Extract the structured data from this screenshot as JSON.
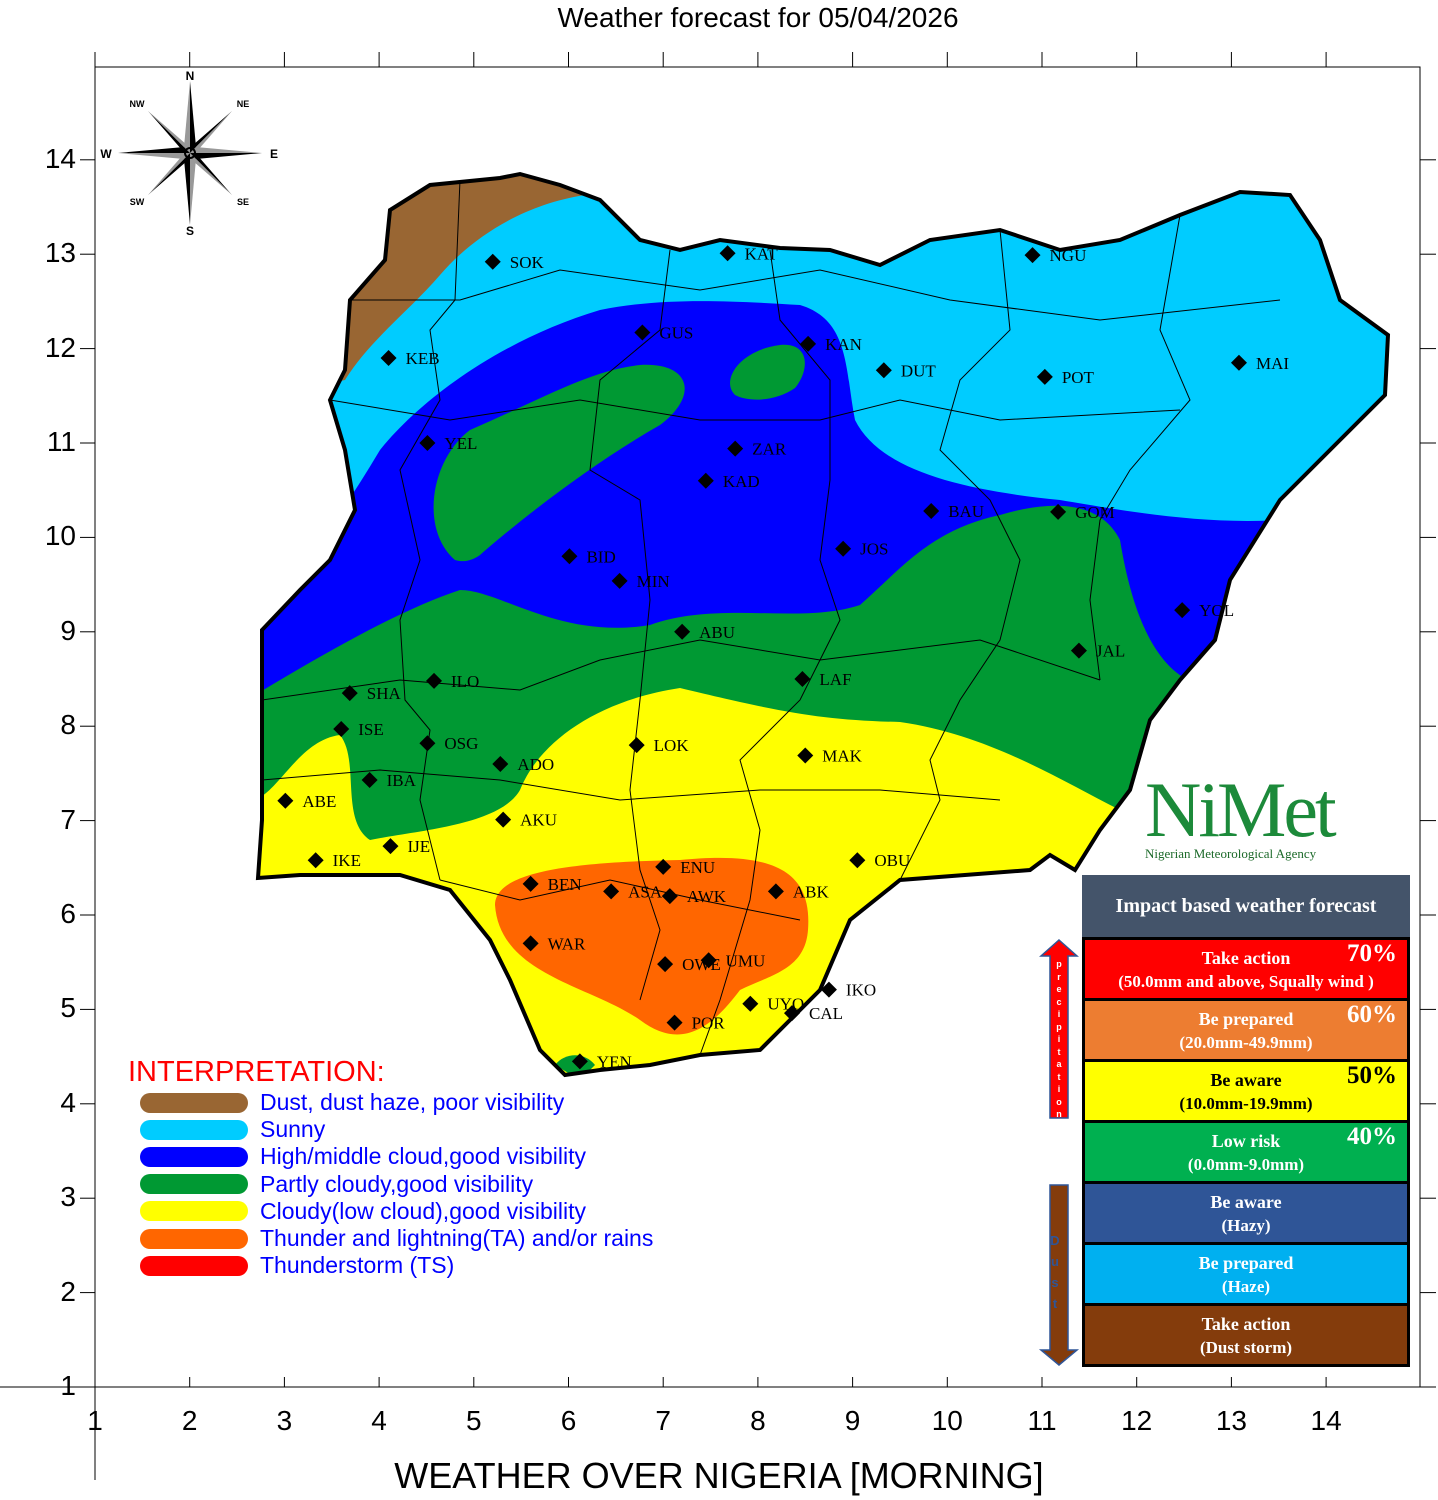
{
  "title": "Weather forecast for 05/04/2026",
  "x_axis_title": "WEATHER OVER NIGERIA [MORNING]",
  "axes": {
    "x_ticks": [
      1,
      2,
      3,
      4,
      5,
      6,
      7,
      8,
      9,
      10,
      11,
      12,
      13,
      14
    ],
    "y_ticks": [
      1,
      2,
      3,
      4,
      5,
      6,
      7,
      8,
      9,
      10,
      11,
      12,
      13,
      14
    ],
    "xlim": [
      1,
      15
    ],
    "ylim": [
      1,
      15
    ]
  },
  "compass": {
    "n": "N",
    "ne": "NE",
    "e": "E",
    "se": "SE",
    "s": "S",
    "sw": "SW",
    "w": "W",
    "nw": "NW"
  },
  "cities": [
    {
      "code": "SOK",
      "x": 5.2,
      "y": 12.92
    },
    {
      "code": "KAT",
      "x": 7.68,
      "y": 13.01
    },
    {
      "code": "NGU",
      "x": 10.9,
      "y": 12.99
    },
    {
      "code": "KEB",
      "x": 4.1,
      "y": 11.9
    },
    {
      "code": "GUS",
      "x": 6.78,
      "y": 12.17
    },
    {
      "code": "KAN",
      "x": 8.53,
      "y": 12.05
    },
    {
      "code": "DUT",
      "x": 9.33,
      "y": 11.77
    },
    {
      "code": "POT",
      "x": 11.03,
      "y": 11.7
    },
    {
      "code": "MAI",
      "x": 13.08,
      "y": 11.85
    },
    {
      "code": "YEL",
      "x": 4.51,
      "y": 11.0
    },
    {
      "code": "ZAR",
      "x": 7.76,
      "y": 10.94
    },
    {
      "code": "KAD",
      "x": 7.45,
      "y": 10.6
    },
    {
      "code": "BAU",
      "x": 9.83,
      "y": 10.28
    },
    {
      "code": "GOM",
      "x": 11.17,
      "y": 10.27
    },
    {
      "code": "BID",
      "x": 6.01,
      "y": 9.8
    },
    {
      "code": "MIN",
      "x": 6.54,
      "y": 9.54
    },
    {
      "code": "JOS",
      "x": 8.9,
      "y": 9.88
    },
    {
      "code": "YOL",
      "x": 12.48,
      "y": 9.23
    },
    {
      "code": "ABU",
      "x": 7.2,
      "y": 9.0
    },
    {
      "code": "JAL",
      "x": 11.39,
      "y": 8.8
    },
    {
      "code": "LAF",
      "x": 8.47,
      "y": 8.5
    },
    {
      "code": "SHA",
      "x": 3.69,
      "y": 8.35
    },
    {
      "code": "ILO",
      "x": 4.58,
      "y": 8.48
    },
    {
      "code": "ISE",
      "x": 3.6,
      "y": 7.97
    },
    {
      "code": "OSG",
      "x": 4.51,
      "y": 7.82
    },
    {
      "code": "LOK",
      "x": 6.72,
      "y": 7.8
    },
    {
      "code": "MAK",
      "x": 8.5,
      "y": 7.69
    },
    {
      "code": "IBA",
      "x": 3.9,
      "y": 7.43
    },
    {
      "code": "ADO",
      "x": 5.28,
      "y": 7.6
    },
    {
      "code": "ABE",
      "x": 3.01,
      "y": 7.21
    },
    {
      "code": "AKU",
      "x": 5.31,
      "y": 7.01
    },
    {
      "code": "IJE",
      "x": 4.12,
      "y": 6.73
    },
    {
      "code": "IKE",
      "x": 3.33,
      "y": 6.58
    },
    {
      "code": "OBU",
      "x": 9.05,
      "y": 6.58
    },
    {
      "code": "ENU",
      "x": 7.0,
      "y": 6.51
    },
    {
      "code": "BEN",
      "x": 5.6,
      "y": 6.33
    },
    {
      "code": "ASA",
      "x": 6.45,
      "y": 6.25
    },
    {
      "code": "AWK",
      "x": 7.07,
      "y": 6.2
    },
    {
      "code": "ABK",
      "x": 8.19,
      "y": 6.25
    },
    {
      "code": "WAR",
      "x": 5.6,
      "y": 5.7
    },
    {
      "code": "OWE",
      "x": 7.02,
      "y": 5.48
    },
    {
      "code": "UMU",
      "x": 7.48,
      "y": 5.52
    },
    {
      "code": "IKO",
      "x": 8.75,
      "y": 5.21
    },
    {
      "code": "UYO",
      "x": 7.92,
      "y": 5.06
    },
    {
      "code": "CAL",
      "x": 8.36,
      "y": 4.96
    },
    {
      "code": "POR",
      "x": 7.12,
      "y": 4.86
    },
    {
      "code": "YEN",
      "x": 6.12,
      "y": 4.45
    }
  ],
  "interpretation": {
    "title": "INTERPRETATION:",
    "items": [
      {
        "label": "Dust, dust haze, poor visibility",
        "color": "#996633"
      },
      {
        "label": "Sunny",
        "color": "#00ccff"
      },
      {
        "label": "High/middle cloud,good visibility",
        "color": "#0000ff"
      },
      {
        "label": "Partly cloudy,good visibility",
        "color": "#009933"
      },
      {
        "label": "Cloudy(low cloud),good visibility",
        "color": "#ffff00"
      },
      {
        "label": "Thunder and lightning(TA) and/or rains",
        "color": "#ff6600"
      },
      {
        "label": "Thunderstorm (TS)",
        "color": "#ff0000"
      }
    ]
  },
  "logo": {
    "word": "NiMet",
    "subtitle": "Nigerian Meteorological Agency"
  },
  "impact": {
    "header": "Impact based weather forecast",
    "precip_label": "Precipitation",
    "dust_label": "Dust",
    "levels": [
      {
        "title": "Take action",
        "sub": "(50.0mm and above, Squally wind )",
        "pct": "70%",
        "color": "#ff0000",
        "text": "#ffffff"
      },
      {
        "title": "Be prepared",
        "sub": "(20.0mm-49.9mm)",
        "pct": "60%",
        "color": "#ed7d31",
        "text": "#ffffff"
      },
      {
        "title": "Be aware",
        "sub": "(10.0mm-19.9mm)",
        "pct": "50%",
        "color": "#ffff00",
        "text": "#000000"
      },
      {
        "title": "Low risk",
        "sub": "(0.0mm-9.0mm)",
        "pct": "40%",
        "color": "#00b050",
        "text": "#ffffff"
      },
      {
        "title": "Be aware",
        "sub": "(Hazy)",
        "pct": "",
        "color": "#2f5597",
        "text": "#ffffff"
      },
      {
        "title": "Be prepared",
        "sub": "(Haze)",
        "pct": "",
        "color": "#00b0f0",
        "text": "#ffffff"
      },
      {
        "title": "Take action",
        "sub": "(Dust storm)",
        "pct": "",
        "color": "#843c0c",
        "text": "#ffffff"
      }
    ]
  }
}
